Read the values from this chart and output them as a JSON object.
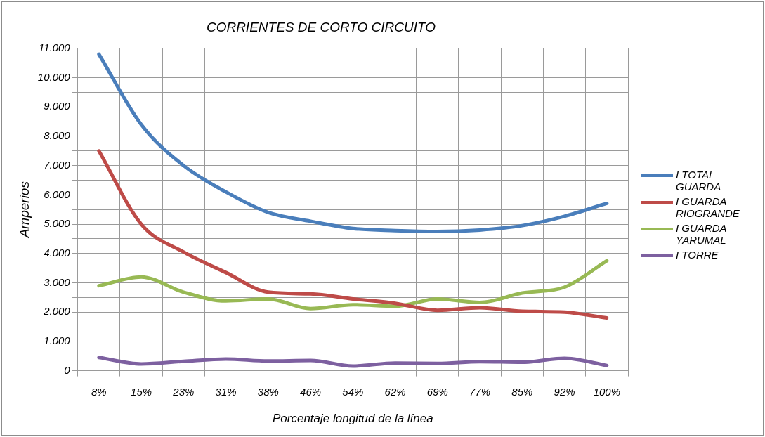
{
  "chart_data": {
    "type": "line",
    "title": "CORRIENTES DE CORTO CIRCUITO",
    "xlabel": "Porcentaje longitud de la línea",
    "ylabel": "Amperios",
    "categories": [
      "8%",
      "15%",
      "23%",
      "31%",
      "38%",
      "46%",
      "54%",
      "62%",
      "69%",
      "77%",
      "85%",
      "92%",
      "100%"
    ],
    "series": [
      {
        "name": "I TOTAL GUARDA",
        "color": "#4a7ebb",
        "values": [
          10800,
          8400,
          7000,
          6100,
          5400,
          5100,
          4850,
          4780,
          4750,
          4800,
          4950,
          5270,
          5710
        ]
      },
      {
        "name": "I GUARDA RIOGRANDE",
        "color": "#be4b48",
        "values": [
          7500,
          5000,
          4050,
          3350,
          2680,
          2620,
          2450,
          2300,
          2060,
          2150,
          2030,
          2000,
          1800
        ]
      },
      {
        "name": "I GUARDA YARUMAL",
        "color": "#98b954",
        "values": [
          2900,
          3200,
          2680,
          2380,
          2450,
          2120,
          2250,
          2200,
          2450,
          2330,
          2650,
          2850,
          3750
        ]
      },
      {
        "name": "I TORRE",
        "color": "#7d60a0",
        "values": [
          450,
          230,
          320,
          400,
          330,
          350,
          160,
          260,
          250,
          310,
          290,
          420,
          180
        ]
      }
    ],
    "ylim": [
      0,
      11000
    ],
    "yticks": [
      0,
      {
        "value": 500,
        "label": null
      },
      {
        "value": 1000,
        "label": "1.000"
      },
      {
        "value": 1500,
        "label": null
      },
      {
        "value": 2000,
        "label": "2.000"
      },
      {
        "value": 2500,
        "label": null
      },
      {
        "value": 3000,
        "label": "3.000"
      },
      {
        "value": 3500,
        "label": null
      },
      {
        "value": 4000,
        "label": "4.000"
      },
      {
        "value": 4500,
        "label": null
      },
      {
        "value": 5000,
        "label": "5.000"
      },
      {
        "value": 5500,
        "label": null
      },
      {
        "value": 6000,
        "label": "6.000"
      },
      {
        "value": 6500,
        "label": null
      },
      {
        "value": 7000,
        "label": "7.000"
      },
      {
        "value": 7500,
        "label": null
      },
      {
        "value": 8000,
        "label": "8.000"
      },
      {
        "value": 8500,
        "label": null
      },
      {
        "value": 9000,
        "label": "9.000"
      },
      {
        "value": 9500,
        "label": null
      },
      {
        "value": 10000,
        "label": "10.000"
      },
      {
        "value": 10500,
        "label": null
      },
      {
        "value": 11000,
        "label": "11.000"
      }
    ],
    "grid": true,
    "legend": "right",
    "marker": "none",
    "line_style": "solid"
  }
}
